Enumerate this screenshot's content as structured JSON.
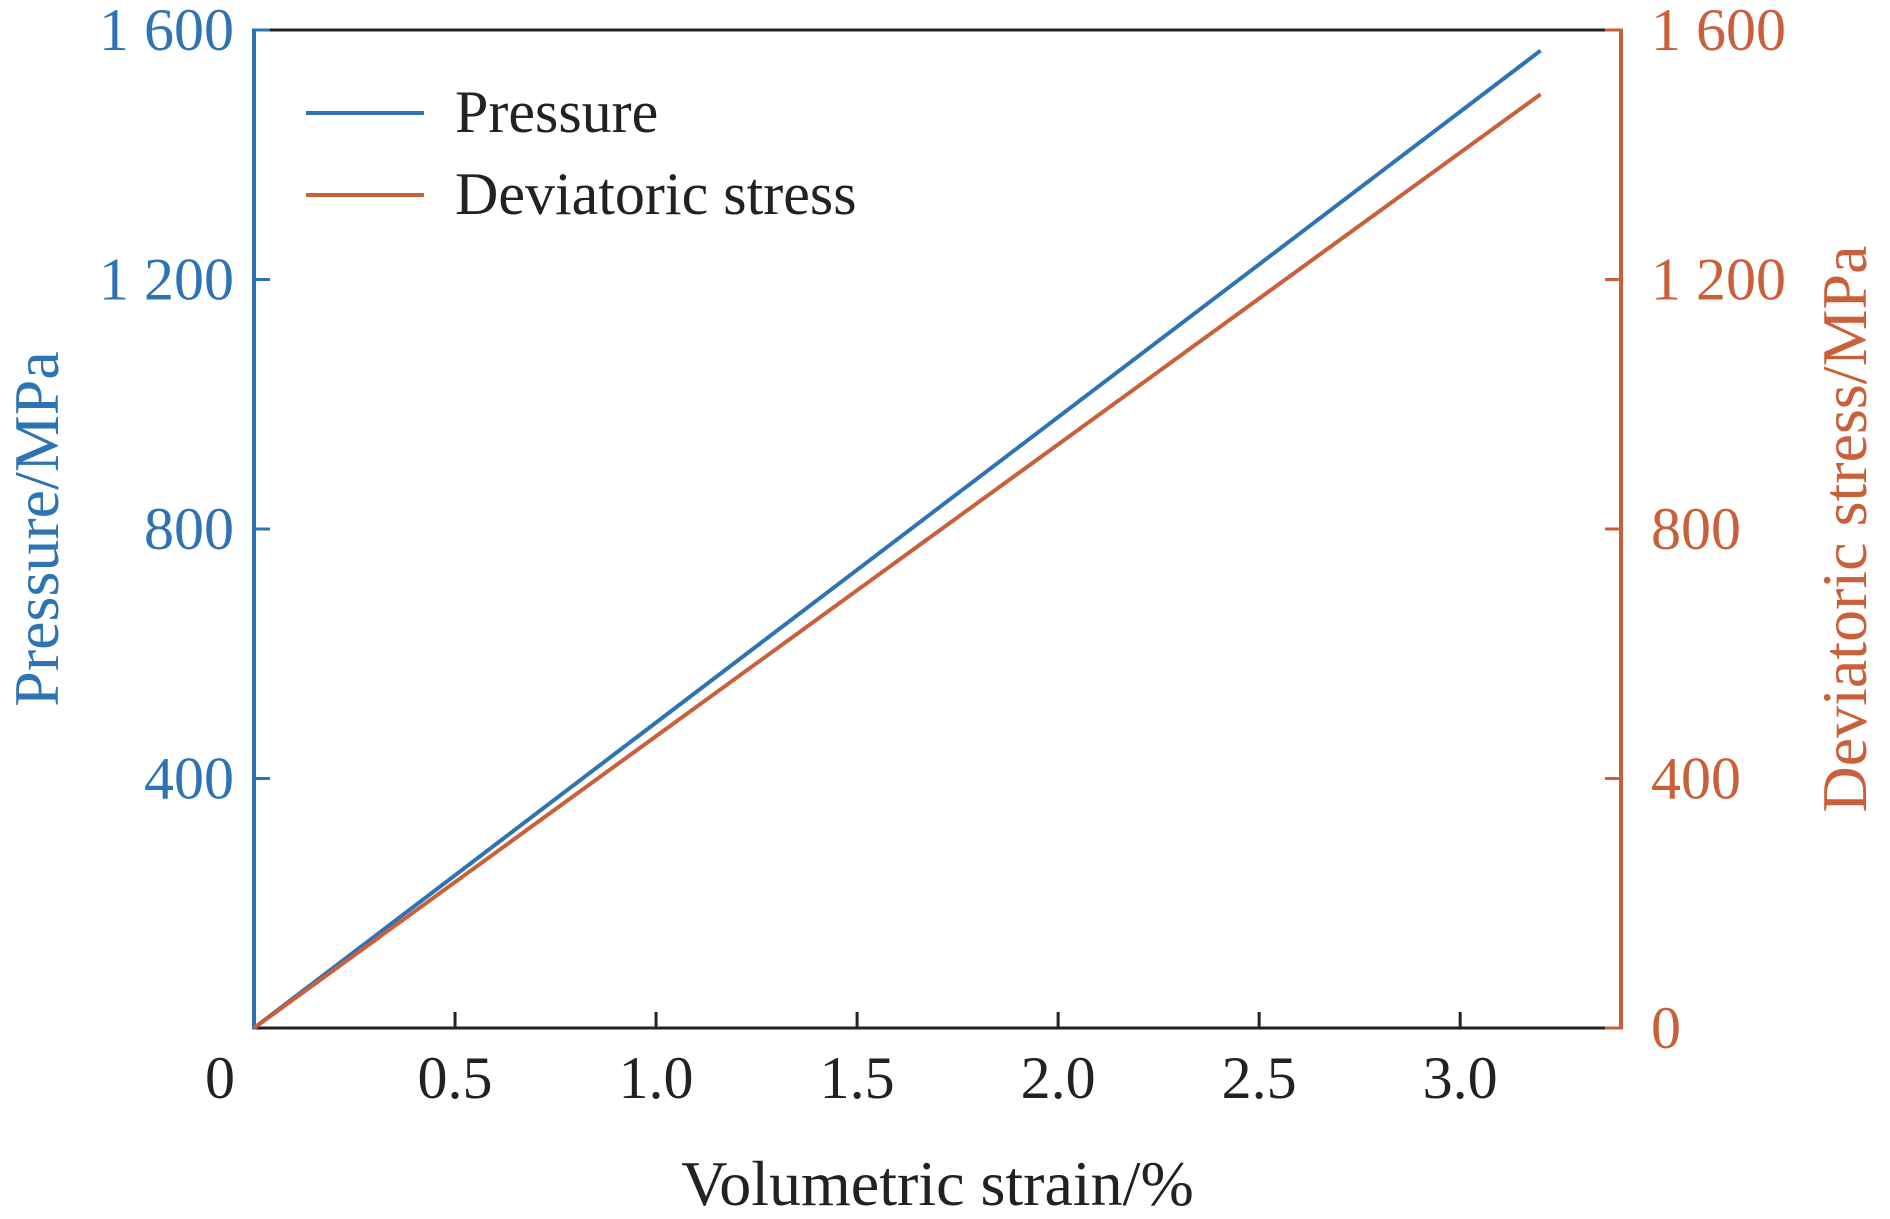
{
  "chart_data": {
    "type": "line",
    "xlabel": "Volumetric strain/%",
    "ylabel_left": "Pressure/MPa",
    "ylabel_right": "Deviatoric stress/MPa",
    "xlim": [
      0,
      3.4
    ],
    "ylim_left": [
      0,
      1600
    ],
    "ylim_right": [
      0,
      1600
    ],
    "x_ticks": [
      "0",
      "0.5",
      "1.0",
      "1.5",
      "2.0",
      "2.5",
      "3.0"
    ],
    "x_tick_values": [
      0,
      0.5,
      1.0,
      1.5,
      2.0,
      2.5,
      3.0
    ],
    "y_left_ticks": [
      "400",
      "800",
      "1 200",
      "1 600"
    ],
    "y_left_tick_values": [
      400,
      800,
      1200,
      1600
    ],
    "y_right_ticks": [
      "0",
      "400",
      "800",
      "1 200",
      "1 600"
    ],
    "y_right_tick_values": [
      0,
      400,
      800,
      1200,
      1600
    ],
    "grid": false,
    "legend_position": "top-left",
    "colors": {
      "left_axis": "#2e74b5",
      "right_axis": "#c9603a",
      "frame": "#222222"
    },
    "series": [
      {
        "name": "Pressure",
        "axis": "left",
        "color": "#2e74b5",
        "x": [
          0,
          3.2
        ],
        "y": [
          0,
          1567
        ]
      },
      {
        "name": "Deviatoric stress",
        "axis": "right",
        "color": "#c9603a",
        "x": [
          0,
          3.2
        ],
        "y": [
          0,
          1497
        ]
      }
    ]
  }
}
